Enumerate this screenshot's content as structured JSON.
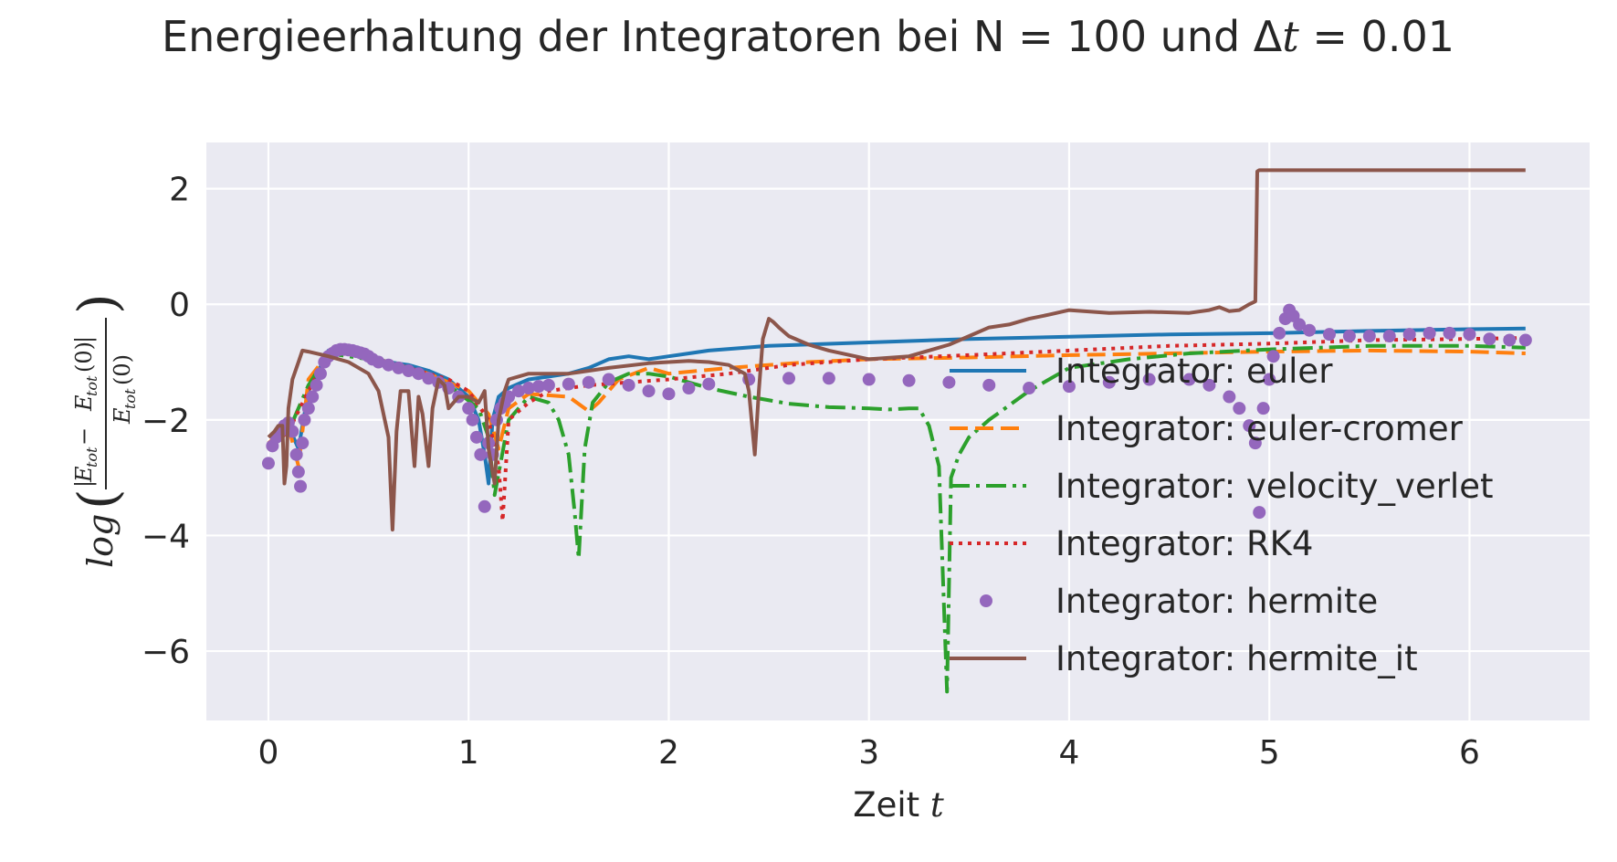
{
  "chart_data": {
    "type": "line",
    "title_main": "Energieerhaltung der Integratoren bei N = 100 und Δ",
    "title_t": "t",
    "title_tail": " = 0.01",
    "xlabel_main": "Zeit ",
    "xlabel_var": "t",
    "ylabel": {
      "log": "log",
      "E": "E",
      "tot": "tot",
      "minus": " − ",
      "zero": "(0)"
    },
    "xlim": [
      -0.31,
      6.6
    ],
    "ylim": [
      -7.2,
      2.8
    ],
    "xticks": [
      0,
      1,
      2,
      3,
      4,
      5,
      6
    ],
    "yticks": [
      2,
      0,
      -2,
      -4,
      -6
    ],
    "ytick_labels": [
      "2",
      "0",
      "−2",
      "−4",
      "−6"
    ],
    "grid": true,
    "legend_position": "lower-right",
    "colors": {
      "background": "#eaeaf2",
      "grid": "#ffffff",
      "euler": "#1f77b4",
      "euler_cromer": "#ff7f0e",
      "velocity_verlet": "#2ca02c",
      "rk4": "#d62728",
      "hermite": "#9467bd",
      "hermite_it": "#8c564b"
    },
    "series": [
      {
        "name": "Integrator: euler",
        "style": "solid",
        "color": "#1f77b4",
        "x": [
          0,
          0.05,
          0.1,
          0.15,
          0.2,
          0.3,
          0.4,
          0.5,
          0.6,
          0.7,
          0.8,
          0.9,
          1.0,
          1.05,
          1.08,
          1.1,
          1.12,
          1.15,
          1.2,
          1.3,
          1.4,
          1.5,
          1.6,
          1.7,
          1.8,
          1.9,
          2.0,
          2.2,
          2.5,
          3.0,
          3.5,
          4.0,
          4.5,
          5.0,
          5.5,
          6.0,
          6.28
        ],
        "y": [
          -2.5,
          -2.2,
          -2.1,
          -2.5,
          -1.5,
          -0.8,
          -0.8,
          -0.9,
          -1.0,
          -1.05,
          -1.15,
          -1.3,
          -1.6,
          -2.0,
          -2.6,
          -3.1,
          -2.0,
          -1.6,
          -1.45,
          -1.3,
          -1.25,
          -1.2,
          -1.1,
          -0.95,
          -0.9,
          -0.95,
          -0.9,
          -0.8,
          -0.72,
          -0.66,
          -0.6,
          -0.56,
          -0.52,
          -0.5,
          -0.46,
          -0.43,
          -0.42
        ]
      },
      {
        "name": "Integrator: euler-cromer",
        "style": "dashed",
        "color": "#ff7f0e",
        "x": [
          0,
          0.1,
          0.15,
          0.2,
          0.3,
          0.4,
          0.6,
          0.8,
          1.0,
          1.1,
          1.15,
          1.2,
          1.3,
          1.5,
          1.6,
          1.65,
          1.75,
          1.9,
          2.0,
          2.3,
          2.7,
          3.0,
          3.5,
          4.0,
          4.5,
          5.0,
          5.5,
          6.0,
          6.28
        ],
        "y": [
          -2.4,
          -2.1,
          -2.8,
          -1.3,
          -0.85,
          -0.85,
          -1.0,
          -1.2,
          -1.5,
          -1.9,
          -2.5,
          -1.8,
          -1.55,
          -1.6,
          -1.85,
          -1.7,
          -1.3,
          -1.1,
          -1.2,
          -1.1,
          -1.0,
          -0.95,
          -0.92,
          -0.88,
          -0.85,
          -0.82,
          -0.8,
          -0.82,
          -0.85
        ]
      },
      {
        "name": "Integrator: velocity_verlet",
        "style": "dashdot",
        "color": "#2ca02c",
        "x": [
          0,
          0.1,
          0.2,
          0.3,
          0.5,
          0.7,
          0.9,
          1.05,
          1.1,
          1.13,
          1.2,
          1.3,
          1.4,
          1.45,
          1.5,
          1.53,
          1.55,
          1.58,
          1.62,
          1.7,
          1.8,
          1.9,
          2.0,
          2.2,
          2.4,
          2.6,
          2.8,
          3.0,
          3.1,
          3.2,
          3.25,
          3.3,
          3.35,
          3.39,
          3.41,
          3.45,
          3.5,
          3.6,
          3.7,
          3.8,
          3.9,
          4.0,
          4.3,
          4.6,
          5.0,
          5.5,
          6.0,
          6.28
        ],
        "y": [
          -2.5,
          -2.2,
          -1.4,
          -0.85,
          -0.95,
          -1.1,
          -1.4,
          -1.8,
          -2.3,
          -3.3,
          -2.0,
          -1.6,
          -1.7,
          -2.0,
          -2.6,
          -3.6,
          -4.4,
          -2.5,
          -1.7,
          -1.35,
          -1.2,
          -1.2,
          -1.25,
          -1.45,
          -1.6,
          -1.72,
          -1.78,
          -1.8,
          -1.82,
          -1.8,
          -1.8,
          -2.1,
          -2.8,
          -6.7,
          -3.0,
          -2.6,
          -2.3,
          -2.0,
          -1.75,
          -1.5,
          -1.3,
          -1.1,
          -0.95,
          -0.85,
          -0.78,
          -0.72,
          -0.72,
          -0.75
        ]
      },
      {
        "name": "Integrator: RK4",
        "style": "dotted",
        "color": "#d62728",
        "x": [
          0,
          0.1,
          0.2,
          0.3,
          0.4,
          0.6,
          0.8,
          0.9,
          1.0,
          1.1,
          1.15,
          1.17,
          1.2,
          1.3,
          1.4,
          1.5,
          1.6,
          1.8,
          2.0,
          2.3,
          2.6,
          3.0,
          3.5,
          4.0,
          4.5,
          5.0,
          5.5,
          6.0,
          6.28
        ],
        "y": [
          -2.5,
          -2.2,
          -1.5,
          -0.85,
          -0.85,
          -1.0,
          -1.2,
          -1.3,
          -1.5,
          -2.0,
          -2.8,
          -3.75,
          -2.0,
          -1.7,
          -1.5,
          -1.45,
          -1.4,
          -1.35,
          -1.3,
          -1.2,
          -1.05,
          -0.95,
          -0.88,
          -0.8,
          -0.72,
          -0.68,
          -0.62,
          -0.6,
          -0.58
        ]
      },
      {
        "name": "Integrator: hermite",
        "style": "dots",
        "color": "#9467bd",
        "x": [
          0,
          0.02,
          0.04,
          0.06,
          0.08,
          0.1,
          0.12,
          0.14,
          0.15,
          0.16,
          0.17,
          0.18,
          0.2,
          0.22,
          0.24,
          0.26,
          0.28,
          0.3,
          0.32,
          0.34,
          0.36,
          0.38,
          0.4,
          0.42,
          0.44,
          0.46,
          0.48,
          0.5,
          0.52,
          0.55,
          0.6,
          0.65,
          0.7,
          0.75,
          0.8,
          0.85,
          0.9,
          0.95,
          1.0,
          1.02,
          1.04,
          1.06,
          1.08,
          1.1,
          1.12,
          1.14,
          1.16,
          1.18,
          1.2,
          1.25,
          1.3,
          1.35,
          1.4,
          1.5,
          1.6,
          1.7,
          1.8,
          1.9,
          2.0,
          2.1,
          2.2,
          2.4,
          2.6,
          2.8,
          3.0,
          3.2,
          3.4,
          3.6,
          3.8,
          4.0,
          4.2,
          4.4,
          4.6,
          4.7,
          4.8,
          4.85,
          4.9,
          4.93,
          4.95,
          4.97,
          5.0,
          5.02,
          5.05,
          5.08,
          5.1,
          5.12,
          5.15,
          5.2,
          5.3,
          5.4,
          5.5,
          5.6,
          5.7,
          5.8,
          5.9,
          6.0,
          6.1,
          6.2,
          6.28
        ],
        "y": [
          -2.75,
          -2.45,
          -2.3,
          -2.2,
          -2.1,
          -2.05,
          -2.2,
          -2.6,
          -2.9,
          -3.15,
          -2.4,
          -2.0,
          -1.8,
          -1.6,
          -1.4,
          -1.2,
          -1.0,
          -0.9,
          -0.85,
          -0.8,
          -0.78,
          -0.78,
          -0.79,
          -0.8,
          -0.82,
          -0.84,
          -0.86,
          -0.9,
          -0.95,
          -1.0,
          -1.05,
          -1.1,
          -1.15,
          -1.2,
          -1.28,
          -1.35,
          -1.45,
          -1.6,
          -1.8,
          -2.0,
          -2.3,
          -2.6,
          -3.5,
          -2.4,
          -2.6,
          -2.0,
          -1.8,
          -1.7,
          -1.6,
          -1.5,
          -1.45,
          -1.42,
          -1.4,
          -1.38,
          -1.35,
          -1.3,
          -1.4,
          -1.5,
          -1.55,
          -1.45,
          -1.38,
          -1.3,
          -1.28,
          -1.28,
          -1.3,
          -1.32,
          -1.35,
          -1.4,
          -1.45,
          -1.42,
          -1.35,
          -1.3,
          -1.3,
          -1.4,
          -1.6,
          -1.8,
          -2.1,
          -2.4,
          -3.6,
          -1.8,
          -1.3,
          -0.9,
          -0.5,
          -0.25,
          -0.1,
          -0.2,
          -0.35,
          -0.45,
          -0.52,
          -0.55,
          -0.55,
          -0.55,
          -0.52,
          -0.5,
          -0.5,
          -0.52,
          -0.6,
          -0.62,
          -0.62
        ]
      },
      {
        "name": "Integrator: hermite_it",
        "style": "solid",
        "color": "#8c564b",
        "x": [
          0,
          0.03,
          0.05,
          0.07,
          0.08,
          0.09,
          0.1,
          0.12,
          0.15,
          0.17,
          0.2,
          0.3,
          0.4,
          0.5,
          0.55,
          0.6,
          0.62,
          0.64,
          0.66,
          0.7,
          0.73,
          0.75,
          0.77,
          0.8,
          0.82,
          0.85,
          0.88,
          0.9,
          0.95,
          1.0,
          1.05,
          1.08,
          1.1,
          1.13,
          1.15,
          1.18,
          1.2,
          1.3,
          1.5,
          1.7,
          1.9,
          2.1,
          2.2,
          2.3,
          2.38,
          2.4,
          2.43,
          2.45,
          2.47,
          2.5,
          2.52,
          2.55,
          2.6,
          2.7,
          2.8,
          3.0,
          3.2,
          3.4,
          3.5,
          3.6,
          3.7,
          3.8,
          3.9,
          4.0,
          4.2,
          4.4,
          4.6,
          4.7,
          4.75,
          4.8,
          4.85,
          4.9,
          4.93,
          4.94,
          4.95,
          5.0,
          5.5,
          6.0,
          6.28
        ],
        "y": [
          -2.3,
          -2.2,
          -2.1,
          -2.1,
          -3.1,
          -2.8,
          -1.8,
          -1.3,
          -1.0,
          -0.8,
          -0.82,
          -0.9,
          -1.0,
          -1.2,
          -1.5,
          -2.3,
          -3.9,
          -2.2,
          -1.5,
          -1.5,
          -2.8,
          -1.6,
          -1.9,
          -2.8,
          -1.8,
          -1.3,
          -1.4,
          -1.8,
          -1.6,
          -1.6,
          -1.7,
          -1.5,
          -2.5,
          -3.1,
          -2.0,
          -1.5,
          -1.3,
          -1.2,
          -1.2,
          -1.1,
          -1.02,
          -0.98,
          -1.0,
          -1.05,
          -1.2,
          -1.5,
          -2.6,
          -1.5,
          -0.6,
          -0.25,
          -0.3,
          -0.4,
          -0.55,
          -0.7,
          -0.8,
          -0.95,
          -0.9,
          -0.7,
          -0.55,
          -0.4,
          -0.35,
          -0.25,
          -0.18,
          -0.1,
          -0.15,
          -0.13,
          -0.15,
          -0.1,
          -0.05,
          -0.12,
          -0.1,
          0.0,
          0.05,
          2.3,
          2.32,
          2.32,
          2.32,
          2.32,
          2.32
        ]
      }
    ]
  }
}
